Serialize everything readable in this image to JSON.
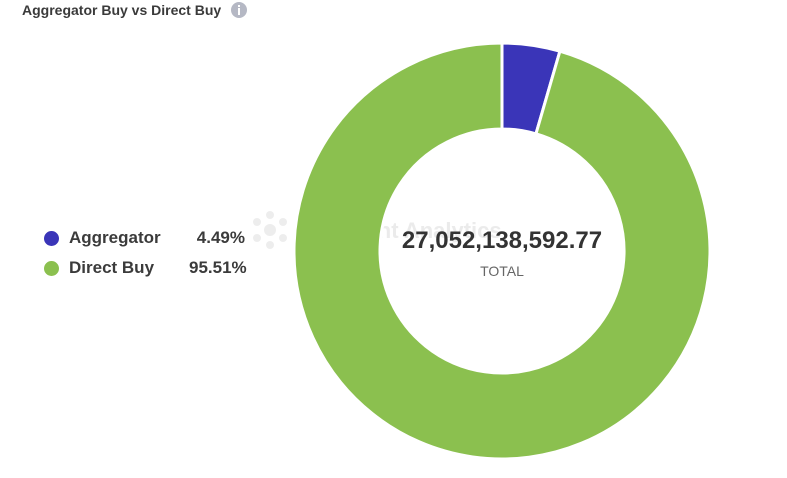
{
  "chart_data": {
    "type": "pie",
    "title": "Aggregator Buy vs Direct Buy",
    "donut": true,
    "categories": [
      "Aggregator",
      "Direct Buy"
    ],
    "values": [
      4.49,
      95.51
    ],
    "value_unit": "%",
    "percent_labels": [
      "4.49%",
      "95.51%"
    ],
    "colors": [
      "#3a35b8",
      "#8bc04f"
    ],
    "legend_position": "left",
    "center_value": "27,052,138,592.77",
    "center_label": "TOTAL"
  },
  "icons": {
    "info": "info-icon",
    "watermark": "footprint-logo"
  },
  "watermark_text": "Footprint Analytics"
}
